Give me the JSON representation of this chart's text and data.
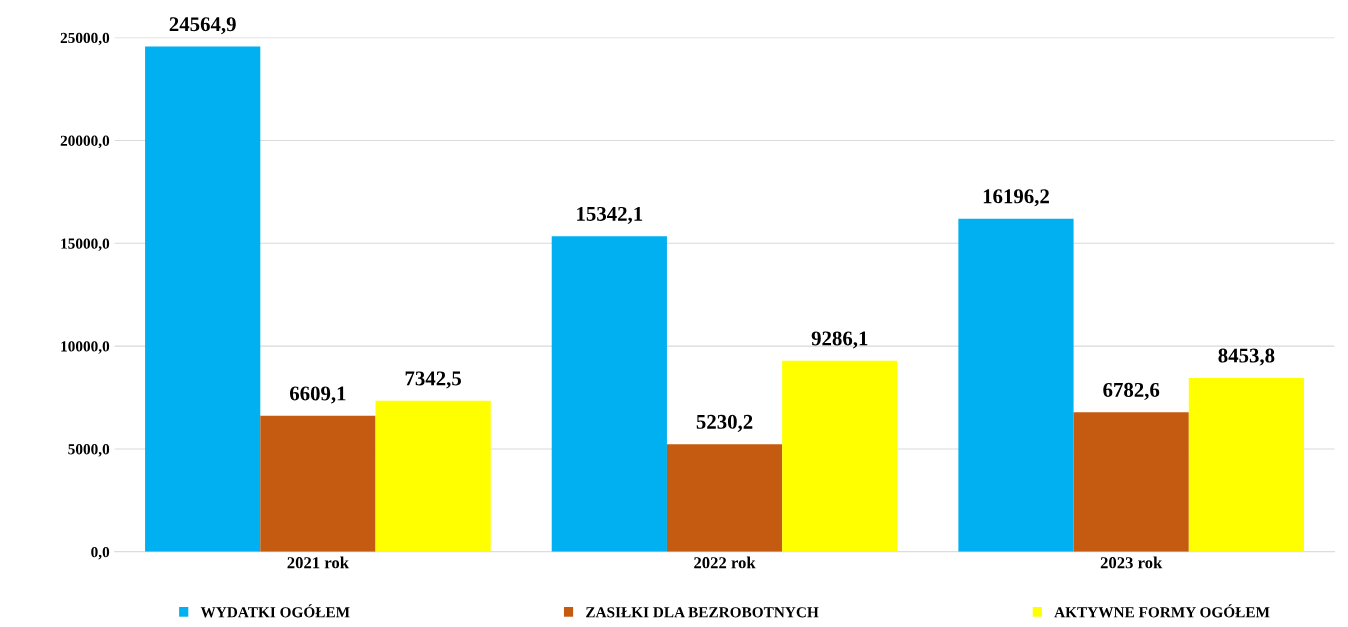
{
  "chart_data": {
    "type": "bar",
    "categories": [
      "2021 rok",
      "2022 rok",
      "2023 rok"
    ],
    "series": [
      {
        "name": "WYDATKI OGÓŁEM",
        "color": "#00b0f0",
        "values": [
          24564.9,
          15342.1,
          16196.2
        ],
        "value_labels": [
          "24564,9",
          "15342,1",
          "16196,2"
        ]
      },
      {
        "name": "ZASIŁKI DLA BEZROBOTNYCH",
        "color": "#c55a11",
        "values": [
          6609.1,
          5230.2,
          6782.6
        ],
        "value_labels": [
          "6609,1",
          "5230,2",
          "6782,6"
        ]
      },
      {
        "name": "AKTYWNE FORMY OGÓŁEM",
        "color": "#ffff00",
        "values": [
          7342.5,
          9286.1,
          8453.8
        ],
        "value_labels": [
          "7342,5",
          "9286,1",
          "8453,8"
        ]
      }
    ],
    "ylim": [
      0,
      25000
    ],
    "yticks": [
      {
        "value": 0,
        "label": "0,0"
      },
      {
        "value": 5000,
        "label": "5000,0"
      },
      {
        "value": 10000,
        "label": "10000,0"
      },
      {
        "value": 15000,
        "label": "15000,0"
      },
      {
        "value": 20000,
        "label": "20000,0"
      },
      {
        "value": 25000,
        "label": "25000,0"
      }
    ],
    "grid": "y",
    "legend": "bottom"
  }
}
